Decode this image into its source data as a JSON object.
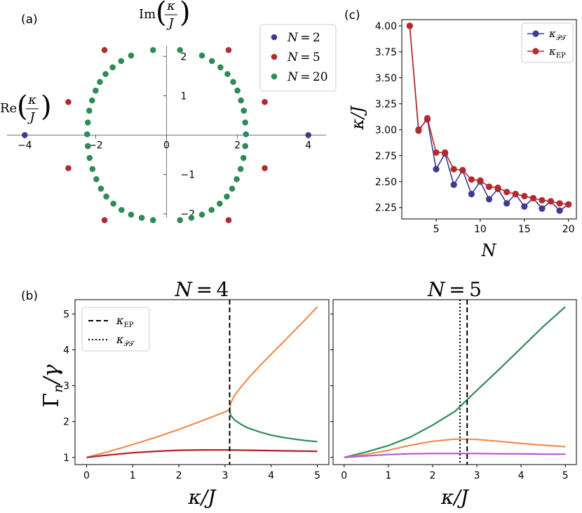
{
  "panel_labels": {
    "a": "(a)",
    "b": "(b)",
    "c": "(c)"
  },
  "chart_data": [
    {
      "id": "a",
      "type": "scatter",
      "title": "",
      "xlabel": "Re(κ/J)",
      "ylabel": "Im(κ/J)",
      "axis_label_parts": {
        "re": "Re",
        "im": "Im",
        "num": "κ",
        "den": "J"
      },
      "xlim": [
        -4.5,
        4.5
      ],
      "ylim": [
        -2.45,
        2.45
      ],
      "xticks": [
        -4,
        -2,
        0,
        2,
        4
      ],
      "xtick_labels": [
        "−4",
        "−2",
        "0",
        "2",
        "4"
      ],
      "yticks": [
        -2,
        -1,
        1,
        2
      ],
      "ytick_labels": [
        "−2",
        "−1",
        "1",
        "2"
      ],
      "legend": {
        "position": "top-right",
        "entries": [
          "N = 2",
          "N = 5",
          "N = 20"
        ],
        "math_var": "N",
        "values": [
          "2",
          "5",
          "20"
        ]
      },
      "colors": {
        "N = 2": "#3b3b8f",
        "N = 5": "#b52a2a",
        "N = 20": "#2e8b57"
      },
      "series": [
        {
          "name": "N = 2",
          "points": [
            [
              -4,
              0
            ],
            [
              4,
              0
            ]
          ]
        },
        {
          "name": "N = 5",
          "points": [
            [
              1.75,
              2.16
            ],
            [
              -1.75,
              2.16
            ],
            [
              2.77,
              0.84
            ],
            [
              -2.77,
              0.84
            ],
            [
              2.77,
              -0.84
            ],
            [
              -2.77,
              -0.84
            ],
            [
              1.75,
              -2.16
            ],
            [
              -1.75,
              -2.16
            ]
          ]
        },
        {
          "name": "N = 20",
          "points": [
            [
              -0.38,
              2.16
            ],
            [
              -1.0,
              2.02
            ],
            [
              -1.28,
              1.88
            ],
            [
              -1.52,
              1.72
            ],
            [
              -1.72,
              1.55
            ],
            [
              -1.88,
              1.35
            ],
            [
              -2.0,
              1.13
            ],
            [
              -2.1,
              0.88
            ],
            [
              -2.18,
              0.62
            ],
            [
              -2.22,
              0.32
            ],
            [
              -2.24,
              0.02
            ],
            [
              -2.22,
              -0.28
            ],
            [
              -2.17,
              -0.58
            ],
            [
              -2.09,
              -0.86
            ],
            [
              -1.98,
              -1.12
            ],
            [
              -1.85,
              -1.36
            ],
            [
              -1.7,
              -1.56
            ],
            [
              -1.5,
              -1.74
            ],
            [
              -1.27,
              -1.9
            ],
            [
              -1.0,
              -2.02
            ],
            [
              -0.7,
              -2.1
            ],
            [
              -0.38,
              -2.16
            ],
            [
              0.38,
              2.16
            ],
            [
              1.0,
              2.02
            ],
            [
              1.28,
              1.88
            ],
            [
              1.52,
              1.72
            ],
            [
              1.72,
              1.55
            ],
            [
              1.88,
              1.35
            ],
            [
              2.0,
              1.13
            ],
            [
              2.1,
              0.88
            ],
            [
              2.18,
              0.62
            ],
            [
              2.22,
              0.32
            ],
            [
              2.24,
              0.02
            ],
            [
              2.22,
              -0.28
            ],
            [
              2.17,
              -0.58
            ],
            [
              2.09,
              -0.86
            ],
            [
              1.98,
              -1.12
            ],
            [
              1.85,
              -1.36
            ],
            [
              1.7,
              -1.56
            ],
            [
              1.5,
              -1.74
            ],
            [
              1.27,
              -1.9
            ],
            [
              1.0,
              -2.02
            ],
            [
              0.7,
              -2.1
            ],
            [
              0.38,
              -2.16
            ]
          ]
        }
      ]
    },
    {
      "id": "c",
      "type": "line",
      "title": "",
      "xlabel": "N",
      "ylabel": "κ/J",
      "xlim": [
        1.1,
        20.9
      ],
      "ylim": [
        2.14,
        4.06
      ],
      "xticks": [
        5,
        10,
        15,
        20
      ],
      "xtick_labels": [
        "5",
        "10",
        "15",
        "20"
      ],
      "yticks": [
        2.25,
        2.5,
        2.75,
        3.0,
        3.25,
        3.5,
        3.75,
        4.0
      ],
      "ytick_labels": [
        "2.25",
        "2.50",
        "2.75",
        "3.00",
        "3.25",
        "3.50",
        "3.75",
        "4.00"
      ],
      "legend": {
        "position": "top-right",
        "entries": [
          "κ_PT",
          "κ_EP"
        ],
        "subs": [
          "𝒫𝒯",
          "EP"
        ]
      },
      "x": [
        2,
        3,
        4,
        5,
        6,
        7,
        8,
        9,
        10,
        11,
        12,
        13,
        14,
        15,
        16,
        17,
        18,
        19,
        20
      ],
      "series": [
        {
          "name": "κ_PT",
          "color": "#3b3b8f",
          "values": [
            4.0,
            3.0,
            3.1,
            2.62,
            2.77,
            2.47,
            2.61,
            2.38,
            2.5,
            2.33,
            2.43,
            2.29,
            2.38,
            2.26,
            2.34,
            2.24,
            2.31,
            2.22,
            2.28
          ]
        },
        {
          "name": "κ_EP",
          "color": "#b52a2a",
          "values": [
            4.0,
            2.99,
            3.11,
            2.78,
            2.78,
            2.62,
            2.61,
            2.52,
            2.51,
            2.45,
            2.44,
            2.4,
            2.38,
            2.36,
            2.34,
            2.32,
            2.31,
            2.29,
            2.28
          ]
        }
      ]
    },
    {
      "id": "b1",
      "type": "line",
      "title": "N = 4",
      "title_parts": {
        "var": "N",
        "value": "4"
      },
      "xlabel": "κ/J",
      "ylabel": "Γn/γ",
      "xlim": [
        -0.25,
        5.25
      ],
      "ylim": [
        0.8,
        5.4
      ],
      "xticks": [
        0,
        1,
        2,
        3,
        4,
        5
      ],
      "yticks": [
        1,
        2,
        3,
        4,
        5
      ],
      "legend": {
        "position": "top-left",
        "entries": [
          "κ_EP",
          "κ_PT"
        ],
        "subs": [
          "EP",
          "𝒫𝒯"
        ],
        "styles": [
          "dashed",
          "dotted"
        ]
      },
      "vlines": [
        {
          "name": "κ_EP",
          "x": 3.1,
          "style": "dashed"
        }
      ],
      "series": [
        {
          "name": "upper branch",
          "color": "#f28c50",
          "x": [
            0,
            0.5,
            1,
            1.5,
            2,
            2.5,
            3.0,
            3.1
          ],
          "values": [
            1.0,
            1.17,
            1.36,
            1.56,
            1.78,
            2.02,
            2.27,
            2.33
          ]
        },
        {
          "name": "upper split",
          "color": "#f28c50",
          "x": [
            3.1,
            3.12,
            3.2,
            3.35,
            3.5,
            3.75,
            4.0,
            4.25,
            4.5,
            4.75,
            5.0
          ],
          "values": [
            2.33,
            2.5,
            2.72,
            2.97,
            3.2,
            3.55,
            3.88,
            4.2,
            4.53,
            4.86,
            5.2
          ]
        },
        {
          "name": "lower split",
          "color": "#2e8b57",
          "x": [
            3.1,
            3.12,
            3.2,
            3.35,
            3.5,
            3.75,
            4.0,
            4.25,
            4.5,
            4.75,
            5.0
          ],
          "values": [
            2.33,
            2.18,
            2.05,
            1.92,
            1.82,
            1.71,
            1.62,
            1.56,
            1.51,
            1.47,
            1.44
          ]
        },
        {
          "name": "bottom",
          "color": "#b22222",
          "x": [
            0,
            0.5,
            1,
            1.5,
            2,
            2.5,
            3,
            3.5,
            4,
            4.5,
            5
          ],
          "values": [
            1.0,
            1.07,
            1.13,
            1.17,
            1.2,
            1.21,
            1.21,
            1.2,
            1.19,
            1.18,
            1.17
          ]
        }
      ]
    },
    {
      "id": "b2",
      "type": "line",
      "title": "N = 5",
      "title_parts": {
        "var": "N",
        "value": "5"
      },
      "xlabel": "κ/J",
      "ylabel": "",
      "xlim": [
        -0.25,
        5.25
      ],
      "ylim": [
        0.8,
        5.4
      ],
      "xticks": [
        0,
        1,
        2,
        3,
        4,
        5
      ],
      "yticks": [
        1,
        2,
        3,
        4,
        5
      ],
      "vlines": [
        {
          "name": "κ_PT",
          "x": 2.62,
          "style": "dotted"
        },
        {
          "name": "κ_EP",
          "x": 2.78,
          "style": "dashed"
        }
      ],
      "series": [
        {
          "name": "green",
          "color": "#2e8b57",
          "x": [
            0,
            0.5,
            1,
            1.5,
            2,
            2.5,
            3,
            3.5,
            4,
            4.5,
            5
          ],
          "values": [
            1.0,
            1.15,
            1.33,
            1.57,
            1.9,
            2.28,
            2.87,
            3.45,
            4.05,
            4.65,
            5.2
          ]
        },
        {
          "name": "orange",
          "color": "#f28c50",
          "x": [
            0,
            0.5,
            1,
            1.5,
            2,
            2.5,
            3,
            3.5,
            4,
            4.5,
            5
          ],
          "values": [
            1.0,
            1.08,
            1.2,
            1.34,
            1.45,
            1.51,
            1.5,
            1.45,
            1.39,
            1.34,
            1.3
          ]
        },
        {
          "name": "purple",
          "color": "#b05ad6",
          "x": [
            0,
            0.5,
            1,
            1.5,
            2,
            2.5,
            3,
            3.5,
            4,
            4.5,
            5
          ],
          "values": [
            1.0,
            1.04,
            1.08,
            1.1,
            1.11,
            1.11,
            1.11,
            1.1,
            1.1,
            1.09,
            1.09
          ]
        }
      ]
    }
  ]
}
